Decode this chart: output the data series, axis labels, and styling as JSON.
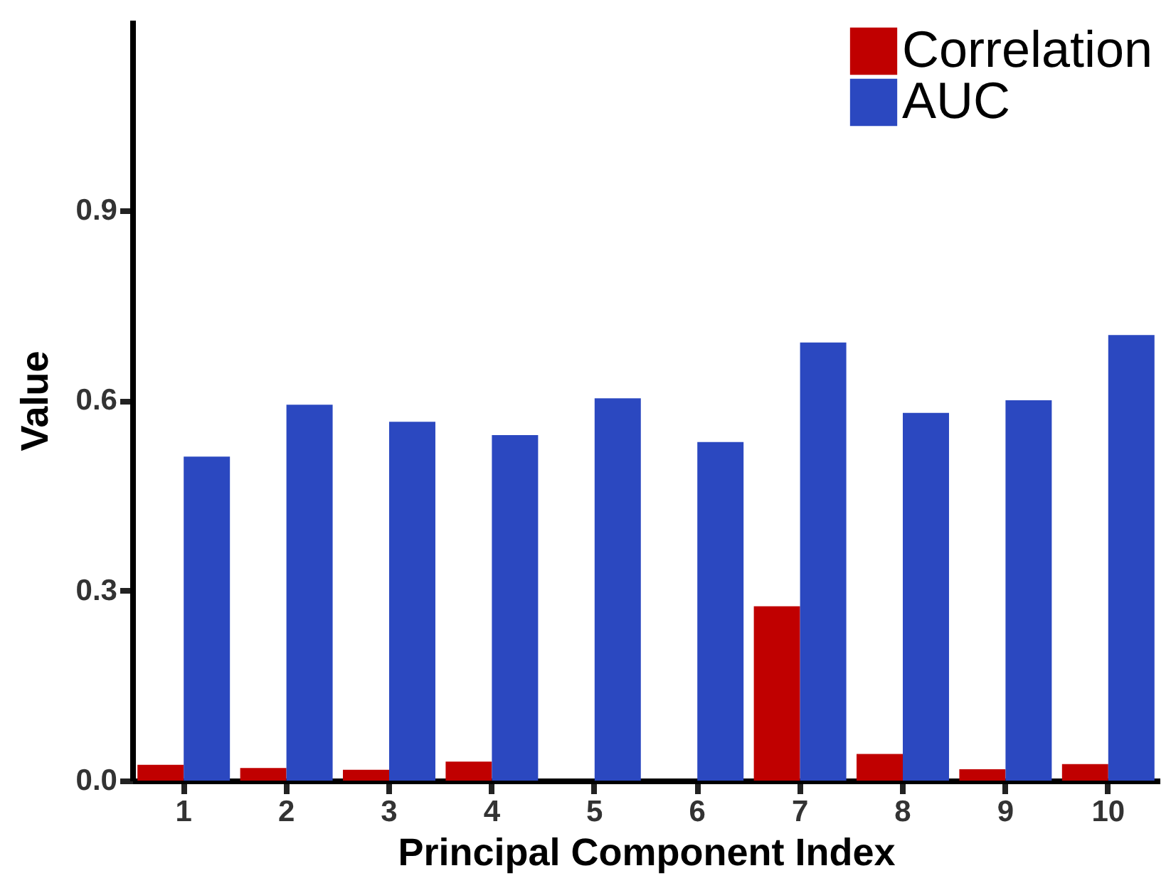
{
  "chart_data": {
    "type": "bar",
    "xlabel": "Principal Component Index",
    "ylabel": "Value",
    "categories": [
      "1",
      "2",
      "3",
      "4",
      "5",
      "6",
      "7",
      "8",
      "9",
      "10"
    ],
    "series": [
      {
        "name": "Correlation",
        "color": "#c00000",
        "values": [
          0.025,
          0.02,
          0.017,
          0.03,
          0,
          0,
          0.275,
          0.042,
          0.018,
          0.026
        ]
      },
      {
        "name": "AUC",
        "color": "#2b48c0",
        "values": [
          0.511,
          0.593,
          0.566,
          0.545,
          0.603,
          0.534,
          0.691,
          0.58,
          0.6,
          0.703
        ]
      }
    ],
    "ylim": [
      0,
      1.2
    ],
    "yticks": [
      {
        "value": 0,
        "label": "0.0"
      },
      0.3,
      0.6,
      0.9
    ],
    "grid": false,
    "legend": "top right"
  }
}
